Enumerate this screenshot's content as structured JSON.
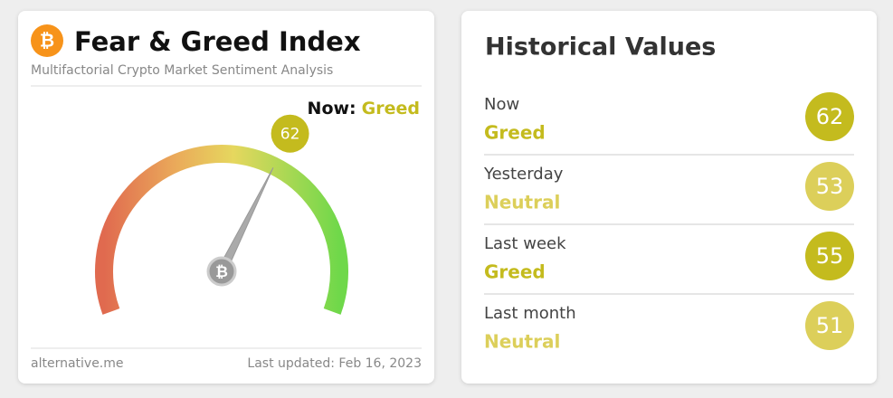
{
  "gauge": {
    "title": "Fear & Greed Index",
    "subtitle": "Multifactorial Crypto Market Sentiment Analysis",
    "now_label": "Now:",
    "now_class": "Greed",
    "value": 62,
    "range": [
      0,
      100
    ],
    "color": "#c4bb1e",
    "source": "alternative.me",
    "updated": "Last updated: Feb 16, 2023"
  },
  "history": {
    "title": "Historical Values",
    "rows": [
      {
        "label": "Now",
        "class": "Greed",
        "value": 62,
        "color": "#c4bb1e"
      },
      {
        "label": "Yesterday",
        "class": "Neutral",
        "value": 53,
        "color": "#dccf5a"
      },
      {
        "label": "Last week",
        "class": "Greed",
        "value": 55,
        "color": "#c4bb1e"
      },
      {
        "label": "Last month",
        "class": "Neutral",
        "value": 51,
        "color": "#dccf5a"
      }
    ]
  }
}
